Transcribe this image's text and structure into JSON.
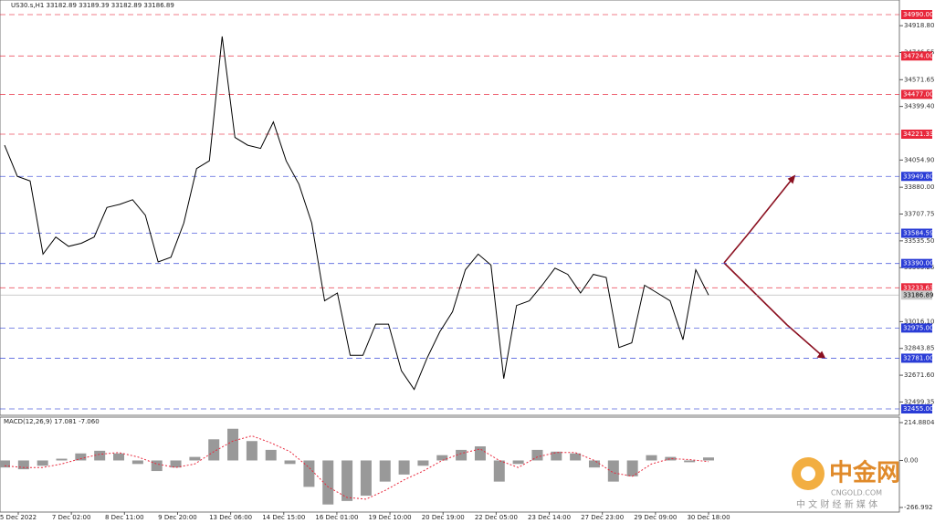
{
  "chart_data": {
    "type": "line",
    "header": "US30.s,H1  33182.89 33189.39 33182.89 33186.89",
    "color": "#000000",
    "x_labels": [
      "5 Dec 2022",
      "7 Dec 02:00",
      "8 Dec 11:00",
      "9 Dec 20:00",
      "13 Dec 06:00",
      "14 Dec 15:00",
      "16 Dec 01:00",
      "19 Dec 10:00",
      "20 Dec 19:00",
      "22 Dec 05:00",
      "23 Dec 14:00",
      "27 Dec 23:00",
      "29 Dec 09:00",
      "30 Dec 18:00"
    ],
    "values": [
      34150,
      33950,
      33920,
      33450,
      33560,
      33500,
      33520,
      33560,
      33750,
      33770,
      33800,
      33700,
      33400,
      33430,
      33650,
      34000,
      34050,
      34850,
      34200,
      34150,
      34130,
      34300,
      34050,
      33900,
      33650,
      33150,
      33200,
      32800,
      32800,
      33000,
      33000,
      32700,
      32580,
      32780,
      32950,
      33080,
      33350,
      33450,
      33380,
      32650,
      33120,
      33150,
      33250,
      33360,
      33320,
      33200,
      33320,
      33300,
      32850,
      32880,
      33250,
      33200,
      33150,
      32900,
      33350,
      33187
    ],
    "ylim": [
      32455,
      34990
    ],
    "yticks": [
      {
        "value": 34918.8,
        "label": "34918.80"
      },
      {
        "value": 34746.55,
        "label": "34746.55"
      },
      {
        "value": 34571.65,
        "label": "34571.65"
      },
      {
        "value": 34399.4,
        "label": "34399.40"
      },
      {
        "value": 34054.9,
        "label": "34054.90"
      },
      {
        "value": 33880,
        "label": "33880.00"
      },
      {
        "value": 33707.75,
        "label": "33707.75"
      },
      {
        "value": 33535.5,
        "label": "33535.50"
      },
      {
        "value": 33363.25,
        "label": "33363.25"
      },
      {
        "value": 33016.1,
        "label": "33016.10"
      },
      {
        "value": 32843.85,
        "label": "32843.85"
      },
      {
        "value": 32671.6,
        "label": "32671.60"
      },
      {
        "value": 32499.35,
        "label": "32499.35"
      }
    ],
    "levels": [
      {
        "value": 34990,
        "label": "34990.00",
        "color": "#e8283c"
      },
      {
        "value": 34724,
        "label": "34724.00",
        "color": "#e8283c"
      },
      {
        "value": 34477,
        "label": "34477.00",
        "color": "#e8283c"
      },
      {
        "value": 34221.33,
        "label": "34221.33",
        "color": "#e8283c"
      },
      {
        "value": 33949.8,
        "label": "33949.80",
        "color": "#2a3cd6"
      },
      {
        "value": 33584.59,
        "label": "33584.59",
        "color": "#2a3cd6"
      },
      {
        "value": 33390,
        "label": "33390.00",
        "color": "#2a3cd6"
      },
      {
        "value": 33233.63,
        "label": "33233.63",
        "color": "#e8283c"
      },
      {
        "value": 33186.89,
        "label": "33186.89",
        "color": "#c8c8c8"
      },
      {
        "value": 32975,
        "label": "32975.00",
        "color": "#2a3cd6"
      },
      {
        "value": 32781,
        "label": "32781.00",
        "color": "#2a3cd6"
      },
      {
        "value": 32455,
        "label": "32455.00",
        "color": "#2a3cd6"
      }
    ],
    "macd": {
      "title": "MACD(12,26,9) 17.081 -7.060",
      "ylim": [
        -266.992,
        214.8804
      ],
      "yticks": [
        {
          "value": 214.8804,
          "label": "214.8804"
        },
        {
          "value": 0,
          "label": "0.00"
        },
        {
          "value": -266.992,
          "label": "-266.992"
        }
      ],
      "histogram": [
        -40,
        -50,
        -30,
        10,
        40,
        55,
        40,
        -20,
        -60,
        -40,
        20,
        120,
        180,
        110,
        60,
        -20,
        -150,
        -250,
        -230,
        -200,
        -120,
        -80,
        -30,
        30,
        60,
        80,
        -120,
        -20,
        60,
        50,
        40,
        -40,
        -120,
        -90,
        30,
        20,
        -10,
        17
      ],
      "signal": [
        -30,
        -40,
        -40,
        -20,
        10,
        35,
        45,
        20,
        -20,
        -40,
        -20,
        50,
        110,
        140,
        100,
        50,
        -40,
        -150,
        -210,
        -220,
        -170,
        -110,
        -60,
        0,
        40,
        65,
        0,
        -40,
        20,
        45,
        45,
        0,
        -70,
        -90,
        -20,
        10,
        5,
        -7
      ]
    },
    "watermark": {
      "brand": "中金网",
      "site": "CNGOLD.COM",
      "slogan": "中 文 财 经 新 媒 体"
    }
  }
}
